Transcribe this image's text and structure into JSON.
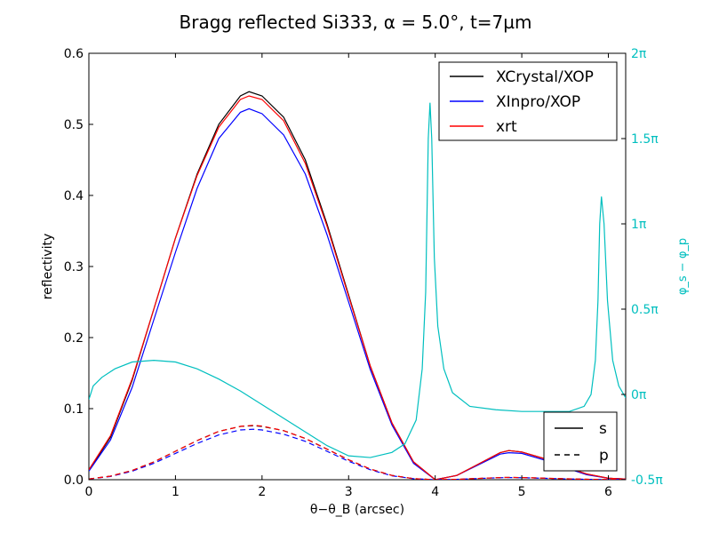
{
  "chart_data": {
    "type": "line",
    "title": "Bragg reflected Si333, α = 5.0°, t=7µm",
    "xlabel": "θ−θ_B  (arcsec)",
    "ylabel": "reflectivity",
    "y2label": "φ_s − φ_p",
    "xlim": [
      0,
      6.2
    ],
    "ylim": [
      0,
      0.6
    ],
    "y2lim": [
      -0.5,
      2.0
    ],
    "xticks": [
      0,
      1,
      2,
      3,
      4,
      5,
      6
    ],
    "yticks": [
      0.0,
      0.1,
      0.2,
      0.3,
      0.4,
      0.5,
      0.6
    ],
    "xtick_labels": [
      "0",
      "1",
      "2",
      "3",
      "4",
      "5",
      "6"
    ],
    "ytick_labels": [
      "0.0",
      "0.1",
      "0.2",
      "0.3",
      "0.4",
      "0.5",
      "0.6"
    ],
    "y2ticks": [
      -0.5,
      0,
      0.5,
      1,
      1.5,
      2
    ],
    "y2tick_labels": [
      "-0.5π",
      "0π",
      "0.5π",
      "1π",
      "1.5π",
      "2π"
    ],
    "grid": false,
    "legend_sources": {
      "placement": "top-right",
      "entries": [
        {
          "label": "XCrystal/XOP",
          "color": "#000000"
        },
        {
          "label": "XInpro/XOP",
          "color": "#0000ff"
        },
        {
          "label": "xrt",
          "color": "#ff0000"
        }
      ]
    },
    "legend_polarization": {
      "placement": "bottom-right",
      "entries": [
        {
          "label": "s",
          "dash": "solid"
        },
        {
          "label": "p",
          "dash": "dashed"
        }
      ]
    },
    "series": [
      {
        "source": "XCrystal/XOP",
        "pol": "s",
        "color": "#000000",
        "dash": "solid",
        "x": [
          0,
          0.25,
          0.5,
          0.75,
          1.0,
          1.25,
          1.5,
          1.75,
          1.85,
          2.0,
          2.25,
          2.5,
          2.75,
          3.0,
          3.25,
          3.5,
          3.75,
          4.0,
          4.25,
          4.5,
          4.75,
          4.85,
          5.0,
          5.25,
          5.5,
          5.75,
          6.0,
          6.2
        ],
        "y": [
          0.013,
          0.06,
          0.14,
          0.24,
          0.34,
          0.43,
          0.5,
          0.54,
          0.546,
          0.54,
          0.51,
          0.45,
          0.36,
          0.26,
          0.16,
          0.08,
          0.025,
          0.0,
          0.006,
          0.022,
          0.038,
          0.041,
          0.039,
          0.03,
          0.018,
          0.008,
          0.002,
          0.001
        ]
      },
      {
        "source": "XInpro/XOP",
        "pol": "s",
        "color": "#0000ff",
        "dash": "solid",
        "x": [
          0,
          0.25,
          0.5,
          0.75,
          1.0,
          1.25,
          1.5,
          1.75,
          1.85,
          2.0,
          2.25,
          2.5,
          2.75,
          3.0,
          3.25,
          3.5,
          3.75,
          4.0,
          4.25,
          4.5,
          4.75,
          4.85,
          5.0,
          5.25,
          5.5,
          5.75,
          6.0,
          6.2
        ],
        "y": [
          0.012,
          0.056,
          0.13,
          0.225,
          0.32,
          0.41,
          0.48,
          0.517,
          0.522,
          0.515,
          0.485,
          0.43,
          0.345,
          0.25,
          0.155,
          0.077,
          0.023,
          0.0,
          0.006,
          0.021,
          0.036,
          0.038,
          0.037,
          0.028,
          0.017,
          0.007,
          0.002,
          0.001
        ]
      },
      {
        "source": "xrt",
        "pol": "s",
        "color": "#ff0000",
        "dash": "solid",
        "x": [
          0,
          0.25,
          0.5,
          0.75,
          1.0,
          1.25,
          1.5,
          1.75,
          1.85,
          2.0,
          2.25,
          2.5,
          2.75,
          3.0,
          3.25,
          3.5,
          3.75,
          4.0,
          4.25,
          4.5,
          4.75,
          4.85,
          5.0,
          5.25,
          5.5,
          5.75,
          6.0,
          6.2
        ],
        "y": [
          0.014,
          0.062,
          0.142,
          0.24,
          0.34,
          0.428,
          0.496,
          0.535,
          0.54,
          0.535,
          0.505,
          0.445,
          0.357,
          0.258,
          0.16,
          0.08,
          0.025,
          0.0,
          0.006,
          0.022,
          0.038,
          0.041,
          0.039,
          0.03,
          0.018,
          0.008,
          0.002,
          0.001
        ]
      },
      {
        "source": "XCrystal/XOP",
        "pol": "p",
        "color": "#000000",
        "dash": "dashed",
        "x": [
          0,
          0.25,
          0.5,
          0.75,
          1.0,
          1.25,
          1.5,
          1.75,
          1.9,
          2.0,
          2.25,
          2.5,
          2.75,
          3.0,
          3.25,
          3.5,
          3.75,
          4.0,
          4.25,
          4.5,
          4.75,
          4.85,
          5.0,
          5.25,
          5.5,
          5.75,
          6.0,
          6.2
        ],
        "y": [
          0.001,
          0.005,
          0.013,
          0.025,
          0.04,
          0.055,
          0.068,
          0.075,
          0.076,
          0.075,
          0.069,
          0.058,
          0.043,
          0.028,
          0.015,
          0.006,
          0.0015,
          0.0,
          0.0005,
          0.0018,
          0.003,
          0.0032,
          0.003,
          0.0022,
          0.0013,
          0.0006,
          0.0002,
          0.0001
        ]
      },
      {
        "source": "XInpro/XOP",
        "pol": "p",
        "color": "#0000ff",
        "dash": "dashed",
        "x": [
          0,
          0.25,
          0.5,
          0.75,
          1.0,
          1.25,
          1.5,
          1.75,
          1.9,
          2.0,
          2.25,
          2.5,
          2.75,
          3.0,
          3.25,
          3.5,
          3.75,
          4.0,
          4.25,
          4.5,
          4.75,
          4.85,
          5.0,
          5.25,
          5.5,
          5.75,
          6.0,
          6.2
        ],
        "y": [
          0.001,
          0.0045,
          0.012,
          0.023,
          0.037,
          0.051,
          0.063,
          0.07,
          0.071,
          0.07,
          0.064,
          0.054,
          0.04,
          0.026,
          0.014,
          0.0055,
          0.0014,
          0.0,
          0.0005,
          0.0017,
          0.0028,
          0.003,
          0.0028,
          0.002,
          0.0012,
          0.0005,
          0.0002,
          0.0001
        ]
      },
      {
        "source": "xrt",
        "pol": "p",
        "color": "#ff0000",
        "dash": "dashed",
        "x": [
          0,
          0.25,
          0.5,
          0.75,
          1.0,
          1.25,
          1.5,
          1.75,
          1.9,
          2.0,
          2.25,
          2.5,
          2.75,
          3.0,
          3.25,
          3.5,
          3.75,
          4.0,
          4.25,
          4.5,
          4.75,
          4.85,
          5.0,
          5.25,
          5.5,
          5.75,
          6.0,
          6.2
        ],
        "y": [
          0.001,
          0.005,
          0.013,
          0.025,
          0.04,
          0.055,
          0.068,
          0.075,
          0.0765,
          0.0755,
          0.069,
          0.058,
          0.043,
          0.028,
          0.015,
          0.006,
          0.0015,
          0.0,
          0.0005,
          0.0018,
          0.003,
          0.0032,
          0.003,
          0.0022,
          0.0013,
          0.0006,
          0.0002,
          0.0001
        ]
      },
      {
        "source": "phase",
        "axis": "y2",
        "color": "#00bfbf",
        "dash": "solid",
        "x": [
          0,
          0.05,
          0.15,
          0.3,
          0.5,
          0.75,
          1.0,
          1.25,
          1.5,
          1.75,
          2.0,
          2.25,
          2.5,
          2.75,
          3.0,
          3.25,
          3.5,
          3.65,
          3.78,
          3.85,
          3.89,
          3.92,
          3.94,
          3.96,
          3.99,
          4.03,
          4.1,
          4.2,
          4.4,
          4.7,
          5.0,
          5.3,
          5.55,
          5.72,
          5.8,
          5.85,
          5.88,
          5.9,
          5.92,
          5.95,
          5.99,
          6.05,
          6.12,
          6.2
        ],
        "y": [
          -0.03,
          0.05,
          0.1,
          0.15,
          0.19,
          0.2,
          0.19,
          0.15,
          0.09,
          0.02,
          -0.06,
          -0.14,
          -0.22,
          -0.3,
          -0.36,
          -0.37,
          -0.34,
          -0.29,
          -0.15,
          0.15,
          0.6,
          1.5,
          1.71,
          1.5,
          0.8,
          0.4,
          0.15,
          0.01,
          -0.07,
          -0.09,
          -0.1,
          -0.1,
          -0.1,
          -0.07,
          0.0,
          0.2,
          0.55,
          1.0,
          1.16,
          1.0,
          0.55,
          0.2,
          0.05,
          -0.02
        ]
      }
    ]
  }
}
